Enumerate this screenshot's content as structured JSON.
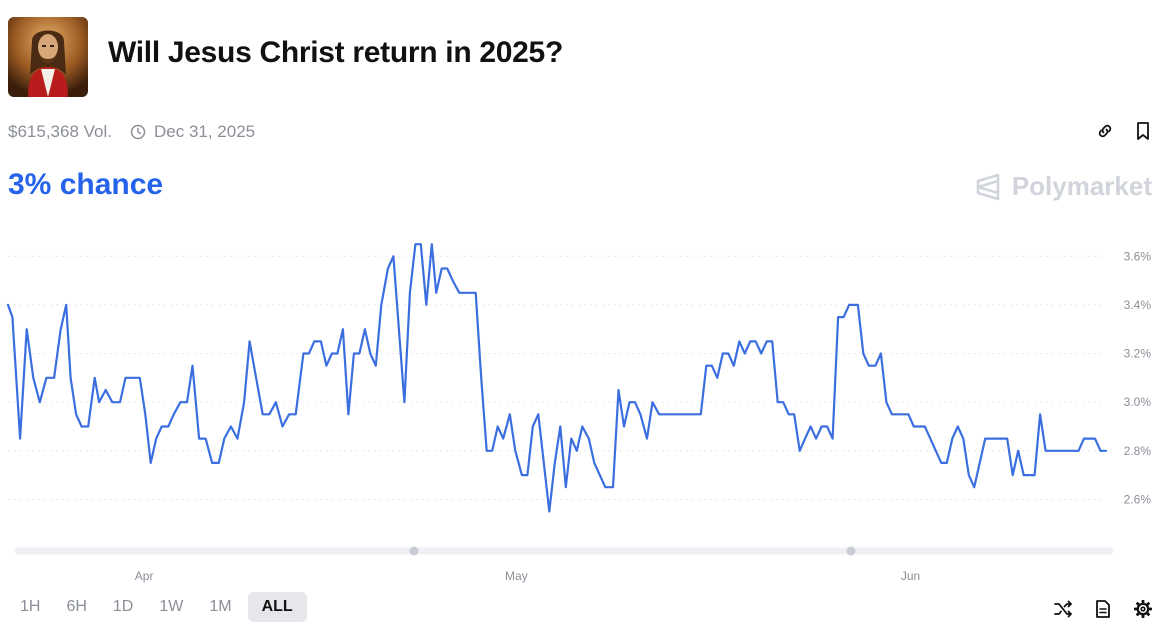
{
  "header": {
    "title": "Will Jesus Christ return in 2025?",
    "thumbnail_icon": "jesus-portrait-icon"
  },
  "meta": {
    "volume": "$615,368 Vol.",
    "end_date": "Dec 31, 2025"
  },
  "summary": {
    "chance": "3% chance"
  },
  "brand": {
    "name": "Polymarket"
  },
  "colors": {
    "accent": "#2563eb",
    "line": "#3b6fe0",
    "grid": "#e5e7eb",
    "muted": "#8b8f98"
  },
  "timeframes": {
    "h1": "1H",
    "h6": "6H",
    "d1": "1D",
    "w1": "1W",
    "m1": "1M",
    "all": "ALL",
    "selected": "ALL"
  },
  "chart_data": {
    "type": "line",
    "ylim": [
      2.4,
      3.7
    ],
    "yticks": [
      "3.6%",
      "3.4%",
      "3.2%",
      "3.0%",
      "2.8%",
      "2.6%"
    ],
    "yvalues": [
      3.6,
      3.4,
      3.2,
      3.0,
      2.8,
      2.6
    ],
    "xticks": [
      "Apr",
      "May",
      "Jun"
    ],
    "grid": true,
    "xlim": [
      0,
      100
    ],
    "xtick_positions": [
      12.4,
      46.3,
      82.2
    ],
    "series": [
      {
        "values": [
          [
            0.0,
            3.4
          ],
          [
            0.4,
            3.35
          ],
          [
            1.1,
            2.85
          ],
          [
            1.7,
            3.3
          ],
          [
            2.3,
            3.1
          ],
          [
            2.9,
            3.0
          ],
          [
            3.5,
            3.1
          ],
          [
            4.2,
            3.1
          ],
          [
            4.8,
            3.3
          ],
          [
            5.3,
            3.4
          ],
          [
            5.7,
            3.1
          ],
          [
            6.2,
            2.95
          ],
          [
            6.7,
            2.9
          ],
          [
            7.3,
            2.9
          ],
          [
            7.9,
            3.1
          ],
          [
            8.3,
            3.0
          ],
          [
            8.9,
            3.05
          ],
          [
            9.5,
            3.0
          ],
          [
            10.2,
            3.0
          ],
          [
            10.7,
            3.1
          ],
          [
            11.3,
            3.1
          ],
          [
            12.0,
            3.1
          ],
          [
            12.5,
            2.95
          ],
          [
            13.0,
            2.75
          ],
          [
            13.5,
            2.85
          ],
          [
            14.0,
            2.9
          ],
          [
            14.6,
            2.9
          ],
          [
            15.1,
            2.95
          ],
          [
            15.7,
            3.0
          ],
          [
            16.3,
            3.0
          ],
          [
            16.8,
            3.15
          ],
          [
            17.4,
            2.85
          ],
          [
            18.0,
            2.85
          ],
          [
            18.6,
            2.75
          ],
          [
            19.2,
            2.75
          ],
          [
            19.7,
            2.85
          ],
          [
            20.3,
            2.9
          ],
          [
            20.9,
            2.85
          ],
          [
            21.5,
            3.0
          ],
          [
            22.0,
            3.25
          ],
          [
            22.6,
            3.1
          ],
          [
            23.2,
            2.95
          ],
          [
            23.8,
            2.95
          ],
          [
            24.4,
            3.0
          ],
          [
            25.0,
            2.9
          ],
          [
            25.6,
            2.95
          ],
          [
            26.2,
            2.95
          ],
          [
            26.9,
            3.2
          ],
          [
            27.4,
            3.2
          ],
          [
            27.9,
            3.25
          ],
          [
            28.5,
            3.25
          ],
          [
            29.0,
            3.15
          ],
          [
            29.5,
            3.2
          ],
          [
            30.0,
            3.2
          ],
          [
            30.5,
            3.3
          ],
          [
            31.0,
            2.95
          ],
          [
            31.5,
            3.2
          ],
          [
            32.0,
            3.2
          ],
          [
            32.5,
            3.3
          ],
          [
            33.0,
            3.2
          ],
          [
            33.5,
            3.15
          ],
          [
            34.0,
            3.4
          ],
          [
            34.6,
            3.55
          ],
          [
            35.1,
            3.6
          ],
          [
            35.6,
            3.3
          ],
          [
            36.1,
            3.0
          ],
          [
            36.6,
            3.45
          ],
          [
            37.1,
            3.65
          ],
          [
            37.6,
            3.65
          ],
          [
            38.1,
            3.4
          ],
          [
            38.6,
            3.65
          ],
          [
            39.0,
            3.45
          ],
          [
            39.5,
            3.55
          ],
          [
            40.0,
            3.55
          ],
          [
            40.5,
            3.5
          ],
          [
            41.1,
            3.45
          ],
          [
            42.0,
            3.45
          ],
          [
            42.6,
            3.45
          ],
          [
            43.1,
            3.1
          ],
          [
            43.6,
            2.8
          ],
          [
            44.1,
            2.8
          ],
          [
            44.6,
            2.9
          ],
          [
            45.1,
            2.85
          ],
          [
            45.7,
            2.95
          ],
          [
            46.2,
            2.8
          ],
          [
            46.8,
            2.7
          ],
          [
            47.3,
            2.7
          ],
          [
            47.8,
            2.9
          ],
          [
            48.3,
            2.95
          ],
          [
            48.8,
            2.75
          ],
          [
            49.3,
            2.55
          ],
          [
            49.8,
            2.75
          ],
          [
            50.3,
            2.9
          ],
          [
            50.8,
            2.65
          ],
          [
            51.3,
            2.85
          ],
          [
            51.8,
            2.8
          ],
          [
            52.3,
            2.9
          ],
          [
            52.9,
            2.85
          ],
          [
            53.4,
            2.75
          ],
          [
            53.9,
            2.7
          ],
          [
            54.4,
            2.65
          ],
          [
            55.1,
            2.65
          ],
          [
            55.6,
            3.05
          ],
          [
            56.1,
            2.9
          ],
          [
            56.6,
            3.0
          ],
          [
            57.1,
            3.0
          ],
          [
            57.6,
            2.95
          ],
          [
            58.2,
            2.85
          ],
          [
            58.7,
            3.0
          ],
          [
            59.3,
            2.95
          ],
          [
            60.0,
            2.95
          ],
          [
            61.0,
            2.95
          ],
          [
            62.0,
            2.95
          ],
          [
            63.1,
            2.95
          ],
          [
            63.6,
            3.15
          ],
          [
            64.1,
            3.15
          ],
          [
            64.6,
            3.1
          ],
          [
            65.1,
            3.2
          ],
          [
            65.6,
            3.2
          ],
          [
            66.1,
            3.15
          ],
          [
            66.6,
            3.25
          ],
          [
            67.1,
            3.2
          ],
          [
            67.6,
            3.25
          ],
          [
            68.1,
            3.25
          ],
          [
            68.6,
            3.2
          ],
          [
            69.1,
            3.25
          ],
          [
            69.6,
            3.25
          ],
          [
            70.1,
            3.0
          ],
          [
            70.6,
            3.0
          ],
          [
            71.1,
            2.95
          ],
          [
            71.6,
            2.95
          ],
          [
            72.1,
            2.8
          ],
          [
            72.6,
            2.85
          ],
          [
            73.1,
            2.9
          ],
          [
            73.6,
            2.85
          ],
          [
            74.1,
            2.9
          ],
          [
            74.6,
            2.9
          ],
          [
            75.1,
            2.85
          ],
          [
            75.6,
            3.35
          ],
          [
            76.1,
            3.35
          ],
          [
            76.6,
            3.4
          ],
          [
            77.4,
            3.4
          ],
          [
            77.9,
            3.2
          ],
          [
            78.4,
            3.15
          ],
          [
            79.0,
            3.15
          ],
          [
            79.5,
            3.2
          ],
          [
            80.0,
            3.0
          ],
          [
            80.5,
            2.95
          ],
          [
            81.0,
            2.95
          ],
          [
            81.5,
            2.95
          ],
          [
            82.0,
            2.95
          ],
          [
            82.5,
            2.9
          ],
          [
            83.0,
            2.9
          ],
          [
            83.5,
            2.9
          ],
          [
            84.0,
            2.85
          ],
          [
            84.5,
            2.8
          ],
          [
            85.0,
            2.75
          ],
          [
            85.5,
            2.75
          ],
          [
            86.0,
            2.85
          ],
          [
            86.5,
            2.9
          ],
          [
            87.0,
            2.85
          ],
          [
            87.5,
            2.7
          ],
          [
            88.0,
            2.65
          ],
          [
            88.5,
            2.75
          ],
          [
            89.0,
            2.85
          ],
          [
            89.5,
            2.85
          ],
          [
            90.0,
            2.85
          ],
          [
            90.5,
            2.85
          ],
          [
            91.0,
            2.85
          ],
          [
            91.5,
            2.7
          ],
          [
            92.0,
            2.8
          ],
          [
            92.5,
            2.7
          ],
          [
            93.0,
            2.7
          ],
          [
            93.5,
            2.7
          ],
          [
            94.0,
            2.95
          ],
          [
            94.5,
            2.8
          ],
          [
            95.0,
            2.8
          ],
          [
            96.0,
            2.8
          ],
          [
            97.0,
            2.8
          ],
          [
            97.5,
            2.8
          ],
          [
            98.0,
            2.85
          ],
          [
            98.5,
            2.85
          ],
          [
            99.0,
            2.85
          ],
          [
            99.5,
            2.8
          ],
          [
            100.0,
            2.8
          ]
        ]
      }
    ]
  }
}
